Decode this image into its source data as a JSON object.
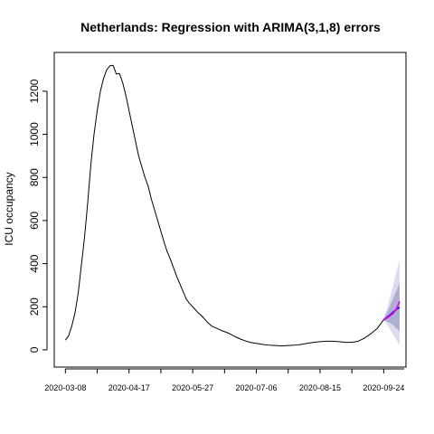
{
  "chart_data": {
    "type": "line",
    "title": "Netherlands: Regression with ARIMA(3,1,8) errors",
    "xlabel": "",
    "ylabel": "ICU occupancy",
    "xlim": [
      "2020-03-01",
      "2020-10-08"
    ],
    "ylim": [
      -80,
      1380
    ],
    "grid": false,
    "x_ticks": [
      "2020-03-08",
      "2020-04-17",
      "2020-05-27",
      "2020-07-06",
      "2020-08-15",
      "2020-09-24"
    ],
    "y_ticks": [
      0,
      200,
      400,
      600,
      800,
      1000,
      1200
    ],
    "colors": {
      "observed": "#000000",
      "forecast": "#0000ff",
      "actual_overlay": "#e000e0",
      "interval_outer": "#dcdcee",
      "interval_inner": "#aeaed2"
    },
    "series": [
      {
        "role": "observed",
        "x": [
          "2020-03-08",
          "2020-03-10",
          "2020-03-12",
          "2020-03-14",
          "2020-03-16",
          "2020-03-18",
          "2020-03-20",
          "2020-03-22",
          "2020-03-24",
          "2020-03-26",
          "2020-03-28",
          "2020-03-30",
          "2020-04-01",
          "2020-04-03",
          "2020-04-05",
          "2020-04-07",
          "2020-04-08",
          "2020-04-09",
          "2020-04-11",
          "2020-04-13",
          "2020-04-15",
          "2020-04-17",
          "2020-04-19",
          "2020-04-21",
          "2020-04-23",
          "2020-04-25",
          "2020-04-27",
          "2020-04-29",
          "2020-05-01",
          "2020-05-03",
          "2020-05-05",
          "2020-05-07",
          "2020-05-09",
          "2020-05-11",
          "2020-05-13",
          "2020-05-15",
          "2020-05-17",
          "2020-05-19",
          "2020-05-21",
          "2020-05-23",
          "2020-05-25",
          "2020-05-27",
          "2020-05-30",
          "2020-06-02",
          "2020-06-05",
          "2020-06-08",
          "2020-06-11",
          "2020-06-14",
          "2020-06-17",
          "2020-06-20",
          "2020-06-23",
          "2020-06-26",
          "2020-06-29",
          "2020-07-02",
          "2020-07-06",
          "2020-07-10",
          "2020-07-14",
          "2020-07-18",
          "2020-07-22",
          "2020-07-26",
          "2020-07-30",
          "2020-08-03",
          "2020-08-07",
          "2020-08-11",
          "2020-08-15",
          "2020-08-19",
          "2020-08-23",
          "2020-08-27",
          "2020-08-31",
          "2020-09-04",
          "2020-09-08",
          "2020-09-12",
          "2020-09-16",
          "2020-09-20",
          "2020-09-24"
        ],
        "y": [
          45,
          65,
          110,
          170,
          260,
          390,
          520,
          680,
          860,
          1000,
          1110,
          1200,
          1260,
          1300,
          1318,
          1320,
          1300,
          1280,
          1282,
          1240,
          1180,
          1110,
          1040,
          970,
          900,
          850,
          800,
          760,
          700,
          650,
          600,
          550,
          500,
          455,
          420,
          380,
          340,
          305,
          270,
          235,
          215,
          200,
          175,
          155,
          130,
          110,
          100,
          90,
          82,
          72,
          60,
          50,
          42,
          35,
          30,
          25,
          22,
          20,
          18,
          20,
          22,
          25,
          30,
          35,
          38,
          40,
          40,
          38,
          35,
          35,
          40,
          55,
          75,
          100,
          140
        ]
      },
      {
        "role": "forecast",
        "x": [
          "2020-09-24",
          "2020-09-26",
          "2020-09-28",
          "2020-09-30",
          "2020-10-02",
          "2020-10-04"
        ],
        "y": [
          140,
          150,
          162,
          175,
          188,
          198
        ]
      },
      {
        "role": "actual_overlay",
        "x": [
          "2020-09-24",
          "2020-09-26",
          "2020-09-28",
          "2020-09-30",
          "2020-10-02",
          "2020-10-04"
        ],
        "y": [
          140,
          148,
          158,
          170,
          190,
          225
        ]
      }
    ],
    "intervals": [
      {
        "level": "outer",
        "x": [
          "2020-09-24",
          "2020-09-26",
          "2020-09-28",
          "2020-09-30",
          "2020-10-02",
          "2020-10-04"
        ],
        "lower": [
          135,
          120,
          95,
          70,
          45,
          20
        ],
        "upper": [
          145,
          190,
          245,
          300,
          360,
          420
        ]
      },
      {
        "level": "inner",
        "x": [
          "2020-09-24",
          "2020-09-26",
          "2020-09-28",
          "2020-09-30",
          "2020-10-02",
          "2020-10-04"
        ],
        "lower": [
          138,
          132,
          125,
          115,
          100,
          85
        ],
        "upper": [
          142,
          172,
          205,
          240,
          275,
          310
        ]
      }
    ]
  }
}
